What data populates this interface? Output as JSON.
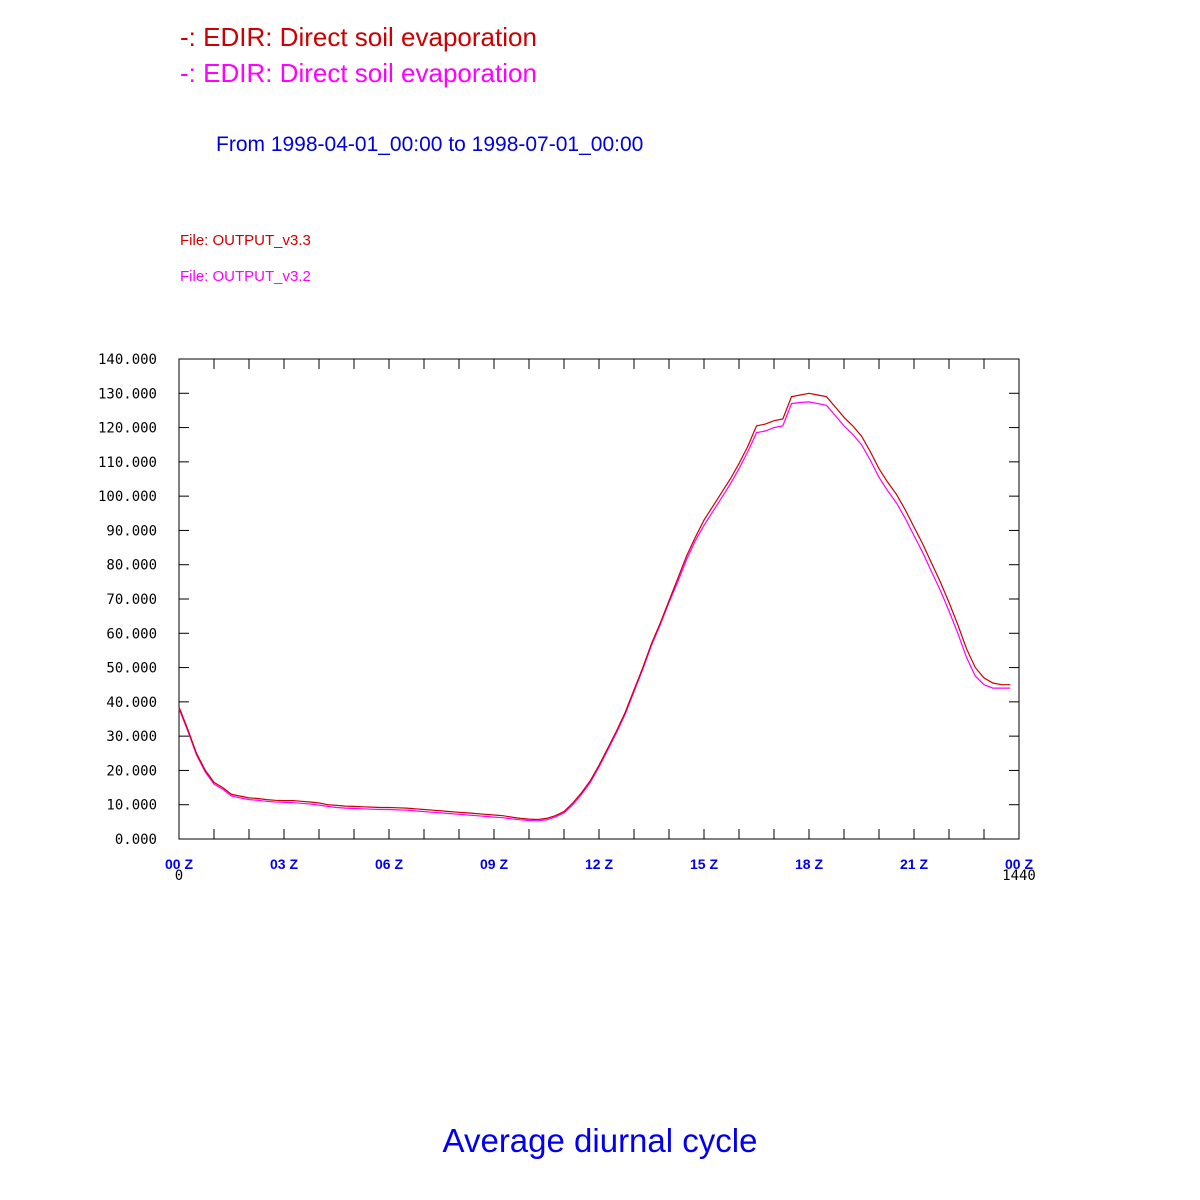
{
  "legend": [
    {
      "text": "-: EDIR: Direct soil evaporation",
      "color": "#cc0000"
    },
    {
      "text": "-: EDIR: Direct soil evaporation",
      "color": "#ff00ff"
    }
  ],
  "date_range": "From 1998-04-01_00:00 to 1998-07-01_00:00",
  "files": [
    {
      "text": "File: OUTPUT_v3.3",
      "color": "#cc0000"
    },
    {
      "text": "File: OUTPUT_v3.2",
      "color": "#ff00ff"
    }
  ],
  "bottom_title": "Average diurnal cycle",
  "chart_data": {
    "type": "line",
    "title": "",
    "xlabel": "",
    "ylabel": "",
    "xlim": [
      0,
      1440
    ],
    "ylim": [
      0,
      140
    ],
    "grid": false,
    "y_ticks": [
      "0.000",
      "10.000",
      "20.000",
      "30.000",
      "40.000",
      "50.000",
      "60.000",
      "70.000",
      "80.000",
      "90.000",
      "100.000",
      "110.000",
      "120.000",
      "130.000",
      "140.000"
    ],
    "x_ticks": [
      {
        "label": "00 Z",
        "value": 0
      },
      {
        "label": "03 Z",
        "value": 180
      },
      {
        "label": "06 Z",
        "value": 360
      },
      {
        "label": "09 Z",
        "value": 540
      },
      {
        "label": "12 Z",
        "value": 720
      },
      {
        "label": "15 Z",
        "value": 900
      },
      {
        "label": "18 Z",
        "value": 1080
      },
      {
        "label": "21 Z",
        "value": 1260
      },
      {
        "label": "00 Z",
        "value": 1440
      }
    ],
    "x_range_labels": [
      "0",
      "1440"
    ],
    "x": [
      0,
      15,
      30,
      45,
      60,
      75,
      90,
      105,
      120,
      135,
      150,
      165,
      180,
      195,
      210,
      225,
      240,
      255,
      270,
      285,
      300,
      315,
      330,
      345,
      360,
      375,
      390,
      405,
      420,
      435,
      450,
      465,
      480,
      495,
      510,
      525,
      540,
      555,
      570,
      585,
      600,
      615,
      630,
      645,
      660,
      675,
      690,
      705,
      720,
      735,
      750,
      765,
      780,
      795,
      810,
      825,
      840,
      855,
      870,
      885,
      900,
      915,
      930,
      945,
      960,
      975,
      990,
      1005,
      1020,
      1035,
      1050,
      1065,
      1080,
      1095,
      1110,
      1125,
      1140,
      1155,
      1170,
      1185,
      1200,
      1215,
      1230,
      1245,
      1260,
      1275,
      1290,
      1305,
      1320,
      1335,
      1350,
      1365,
      1380,
      1395,
      1410,
      1425
    ],
    "series": [
      {
        "name": "OUTPUT_v3.3",
        "color": "#cc0000",
        "values": [
          38.5,
          32.0,
          25.0,
          20.0,
          16.5,
          15.0,
          13.0,
          12.5,
          12.0,
          11.8,
          11.5,
          11.3,
          11.2,
          11.2,
          11.0,
          10.8,
          10.5,
          10.0,
          9.8,
          9.6,
          9.5,
          9.4,
          9.3,
          9.2,
          9.2,
          9.1,
          9.0,
          8.8,
          8.6,
          8.4,
          8.2,
          8.0,
          7.8,
          7.6,
          7.4,
          7.2,
          7.0,
          6.8,
          6.4,
          6.0,
          5.8,
          5.7,
          6.0,
          6.8,
          8.0,
          10.5,
          13.5,
          17.0,
          21.5,
          26.5,
          31.5,
          37.0,
          43.5,
          50.0,
          57.0,
          63.0,
          69.5,
          76.0,
          82.5,
          88.0,
          93.0,
          97.0,
          101.0,
          105.0,
          109.5,
          114.5,
          120.5,
          121.0,
          122.0,
          122.5,
          129.0,
          129.5,
          130.0,
          129.5,
          129.0,
          126.0,
          123.0,
          120.5,
          117.5,
          113.0,
          108.0,
          104.0,
          100.5,
          96.0,
          91.0,
          86.0,
          80.5,
          75.0,
          69.0,
          62.5,
          55.5,
          50.0,
          47.0,
          45.5,
          45.0,
          45.0
        ]
      },
      {
        "name": "OUTPUT_v3.2",
        "color": "#ff00ff",
        "values": [
          38.0,
          31.5,
          24.5,
          19.5,
          16.0,
          14.5,
          12.5,
          12.0,
          11.5,
          11.3,
          11.0,
          10.8,
          10.7,
          10.6,
          10.4,
          10.2,
          9.9,
          9.5,
          9.2,
          9.0,
          8.9,
          8.8,
          8.7,
          8.6,
          8.6,
          8.5,
          8.4,
          8.2,
          8.0,
          7.8,
          7.6,
          7.4,
          7.2,
          7.0,
          6.8,
          6.6,
          6.4,
          6.2,
          5.9,
          5.6,
          5.4,
          5.3,
          5.6,
          6.4,
          7.6,
          10.0,
          13.0,
          16.5,
          21.0,
          26.0,
          31.0,
          36.5,
          43.0,
          49.5,
          56.5,
          62.5,
          69.0,
          75.0,
          81.5,
          87.0,
          91.5,
          95.5,
          99.5,
          103.5,
          108.0,
          113.0,
          118.5,
          119.0,
          120.0,
          120.5,
          127.0,
          127.3,
          127.5,
          127.0,
          126.5,
          123.5,
          120.5,
          118.0,
          115.0,
          110.5,
          105.5,
          101.5,
          98.0,
          93.5,
          88.5,
          83.5,
          78.0,
          72.5,
          66.5,
          60.0,
          53.0,
          47.5,
          45.0,
          44.0,
          44.0,
          44.0
        ]
      }
    ]
  }
}
